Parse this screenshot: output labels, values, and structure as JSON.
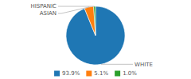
{
  "chart_data": {
    "type": "pie",
    "categories": [
      "WHITE",
      "ASIAN",
      "HISPANIC"
    ],
    "values": [
      93.9,
      5.1,
      1.0
    ],
    "value_labels": [
      "93.9%",
      "5.1%",
      "1.0%"
    ],
    "legend": "bottom"
  }
}
